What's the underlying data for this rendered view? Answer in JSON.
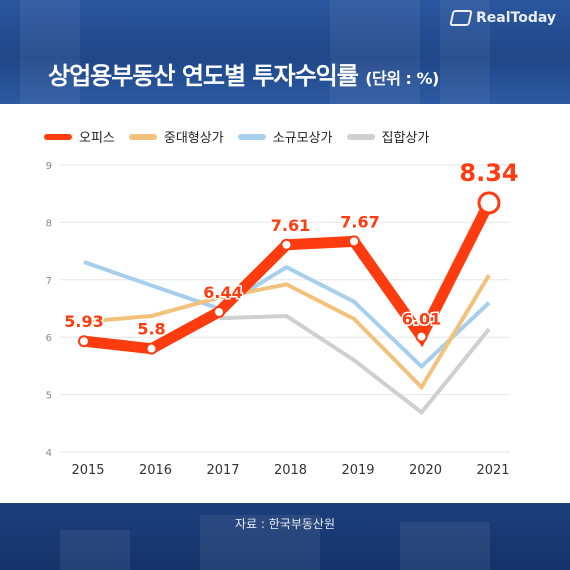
{
  "brand": {
    "name": "RealToday"
  },
  "header": {
    "title": "상업용부동산 연도별 투자수익률",
    "unit": "(단위 : %)"
  },
  "source": "자료 : 한국부동산원",
  "chart_data": {
    "type": "line",
    "title": "상업용부동산 연도별 투자수익률",
    "x": [
      "2015",
      "2016",
      "2017",
      "2018",
      "2019",
      "2020",
      "2021"
    ],
    "ylim": [
      4,
      9
    ],
    "yticks": [
      "4",
      "5",
      "6",
      "7",
      "8",
      "9"
    ],
    "grid": true,
    "legend": "top",
    "series": [
      {
        "name": "오피스",
        "color": "#ff3b10",
        "values": [
          5.93,
          5.8,
          6.44,
          7.61,
          7.67,
          6.01,
          8.34
        ],
        "labels": [
          "5.93",
          "5.8",
          "6.44",
          "7.61",
          "7.67",
          "6.01",
          "8.34"
        ]
      },
      {
        "name": "중대형상가",
        "color": "#f2c27c",
        "values": [
          6.27,
          6.37,
          6.69,
          6.92,
          6.32,
          5.13,
          7.08
        ]
      },
      {
        "name": "소규모상가",
        "color": "#a6cfee",
        "values": [
          7.31,
          6.9,
          6.5,
          7.22,
          6.62,
          5.49,
          6.6
        ]
      },
      {
        "name": "집합상가",
        "color": "#cfcfcf",
        "values": [
          null,
          null,
          6.33,
          6.37,
          5.6,
          4.69,
          6.14
        ]
      }
    ]
  }
}
